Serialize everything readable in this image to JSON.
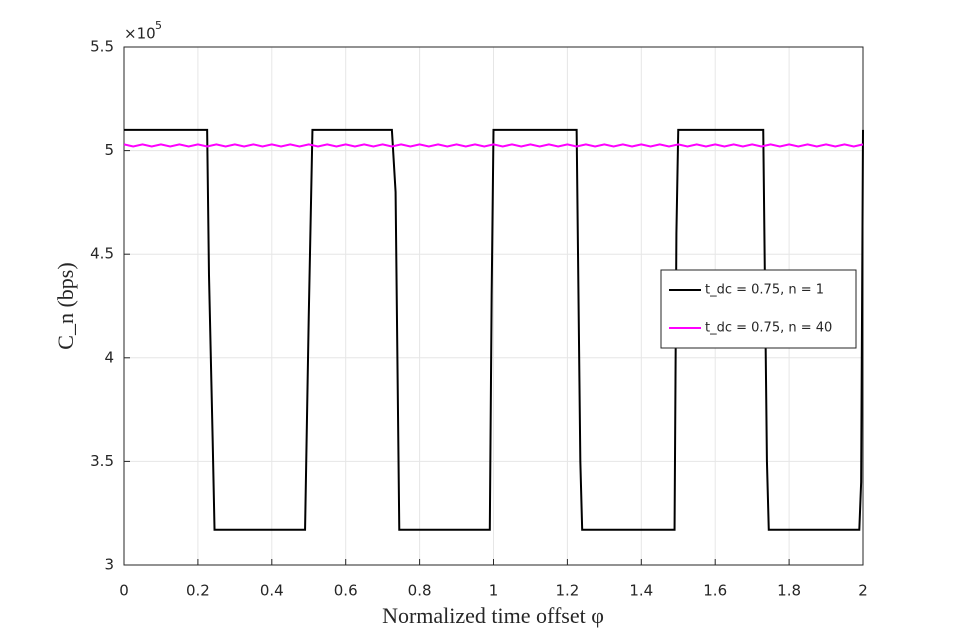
{
  "chart_data": {
    "type": "line",
    "xlabel": "Normalized time offset φ",
    "ylabel": "C_n (bps)",
    "y_multiplier": "×10",
    "y_multiplier_exponent": "5",
    "xlim": [
      0,
      2
    ],
    "xticks": [
      0,
      0.2,
      0.4,
      0.6,
      0.8,
      1,
      1.2,
      1.4,
      1.6,
      1.8,
      2
    ],
    "ylim": [
      3,
      5.5
    ],
    "yticks": [
      3,
      3.5,
      4,
      4.5,
      5,
      5.5
    ],
    "grid": true,
    "legend": "right",
    "series": [
      {
        "name": "t_dc = 0.75, n = 1",
        "color": "#000000",
        "x": [
          0,
          0.225,
          0.23,
          0.24,
          0.245,
          0.49,
          0.5,
          0.51,
          0.725,
          0.735,
          0.745,
          0.99,
          0.995,
          1.0,
          1.225,
          1.235,
          1.24,
          1.49,
          1.495,
          1.5,
          1.73,
          1.74,
          1.745,
          1.99,
          1.995,
          2
        ],
        "values": [
          5.1,
          5.1,
          4.4,
          3.6,
          3.17,
          3.17,
          4.2,
          5.1,
          5.1,
          4.8,
          3.17,
          3.17,
          4.3,
          5.1,
          5.1,
          3.5,
          3.17,
          3.17,
          4.6,
          5.1,
          5.1,
          3.5,
          3.17,
          3.17,
          3.4,
          5.1
        ]
      },
      {
        "name": "t_dc = 0.75, n = 40",
        "color": "#ff00ff",
        "x": [
          0,
          0.025,
          0.05,
          0.075,
          0.1,
          0.125,
          0.15,
          0.175,
          0.2,
          0.225,
          0.25,
          0.275,
          0.3,
          0.325,
          0.35,
          0.375,
          0.4,
          0.425,
          0.45,
          0.475,
          0.5,
          0.525,
          0.55,
          0.575,
          0.6,
          0.625,
          0.65,
          0.675,
          0.7,
          0.725,
          0.75,
          0.775,
          0.8,
          0.825,
          0.85,
          0.875,
          0.9,
          0.925,
          0.95,
          0.975,
          1,
          1.025,
          1.05,
          1.075,
          1.1,
          1.125,
          1.15,
          1.175,
          1.2,
          1.225,
          1.25,
          1.275,
          1.3,
          1.325,
          1.35,
          1.375,
          1.4,
          1.425,
          1.45,
          1.475,
          1.5,
          1.525,
          1.55,
          1.575,
          1.6,
          1.625,
          1.65,
          1.675,
          1.7,
          1.725,
          1.75,
          1.775,
          1.8,
          1.825,
          1.85,
          1.875,
          1.9,
          1.925,
          1.95,
          1.975,
          2
        ],
        "values": [
          5.03,
          5.02,
          5.03,
          5.02,
          5.03,
          5.02,
          5.03,
          5.02,
          5.03,
          5.02,
          5.03,
          5.02,
          5.03,
          5.02,
          5.03,
          5.02,
          5.03,
          5.02,
          5.03,
          5.02,
          5.03,
          5.02,
          5.03,
          5.02,
          5.03,
          5.02,
          5.03,
          5.02,
          5.03,
          5.02,
          5.03,
          5.02,
          5.03,
          5.02,
          5.03,
          5.02,
          5.03,
          5.02,
          5.03,
          5.02,
          5.03,
          5.02,
          5.03,
          5.02,
          5.03,
          5.02,
          5.03,
          5.02,
          5.03,
          5.02,
          5.03,
          5.02,
          5.03,
          5.02,
          5.03,
          5.02,
          5.03,
          5.02,
          5.03,
          5.02,
          5.03,
          5.02,
          5.03,
          5.02,
          5.03,
          5.02,
          5.03,
          5.02,
          5.03,
          5.02,
          5.03,
          5.02,
          5.03,
          5.02,
          5.03,
          5.02,
          5.03,
          5.02,
          5.03,
          5.02,
          5.03
        ]
      }
    ]
  }
}
